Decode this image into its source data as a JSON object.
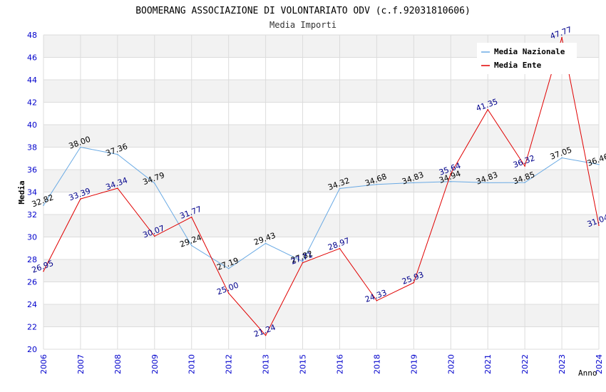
{
  "chart_data": {
    "type": "line",
    "title": "BOOMERANG ASSOCIAZIONE DI VOLONTARIATO ODV (c.f.92031810606)",
    "subtitle": "Media Importi",
    "xlabel": "Anno",
    "ylabel": "Media",
    "ylim": [
      20,
      48
    ],
    "yticks": [
      "20",
      "22",
      "24",
      "26",
      "28",
      "30",
      "32",
      "34",
      "36",
      "38",
      "40",
      "42",
      "44",
      "46",
      "48"
    ],
    "categories": [
      "2006",
      "2007",
      "2008",
      "2009",
      "2010",
      "2012",
      "2013",
      "2015",
      "2016",
      "2018",
      "2019",
      "2020",
      "2021",
      "2022",
      "2023",
      "2024"
    ],
    "legend_position": "top-right",
    "grid": true,
    "series": [
      {
        "name": "Media Nazionale",
        "color": "#6aaae4",
        "label_color": "#000000",
        "values": [
          32.82,
          38.0,
          37.36,
          34.79,
          29.24,
          27.19,
          29.43,
          27.82,
          34.32,
          34.68,
          34.83,
          34.94,
          34.83,
          34.85,
          37.05,
          36.46
        ],
        "labels": [
          "32.82",
          "38.00",
          "37.36",
          "34.79",
          "29.24",
          "27.19",
          "29.43",
          "27.82",
          "34.32",
          "34.68",
          "34.83",
          "34.94",
          "34.83",
          "34.85",
          "37.05",
          "36.46"
        ]
      },
      {
        "name": "Media Ente",
        "color": "#e00000",
        "label_color": "#00008b",
        "values": [
          26.95,
          33.39,
          34.34,
          30.07,
          31.77,
          25.0,
          21.24,
          27.71,
          28.97,
          24.33,
          25.93,
          35.64,
          41.35,
          36.32,
          47.77,
          31.04
        ],
        "labels": [
          "26.95",
          "33.39",
          "34.34",
          "30.07",
          "31.77",
          "25.00",
          "21.24",
          "27.71",
          "28.97",
          "24.33",
          "25.93",
          "35.64",
          "41.35",
          "36.32",
          "47.77",
          "31.04"
        ]
      }
    ]
  },
  "colors": {
    "band": "#f2f2f2",
    "grid": "#dcdcdc",
    "axis_tick_text": "#0000cc"
  }
}
